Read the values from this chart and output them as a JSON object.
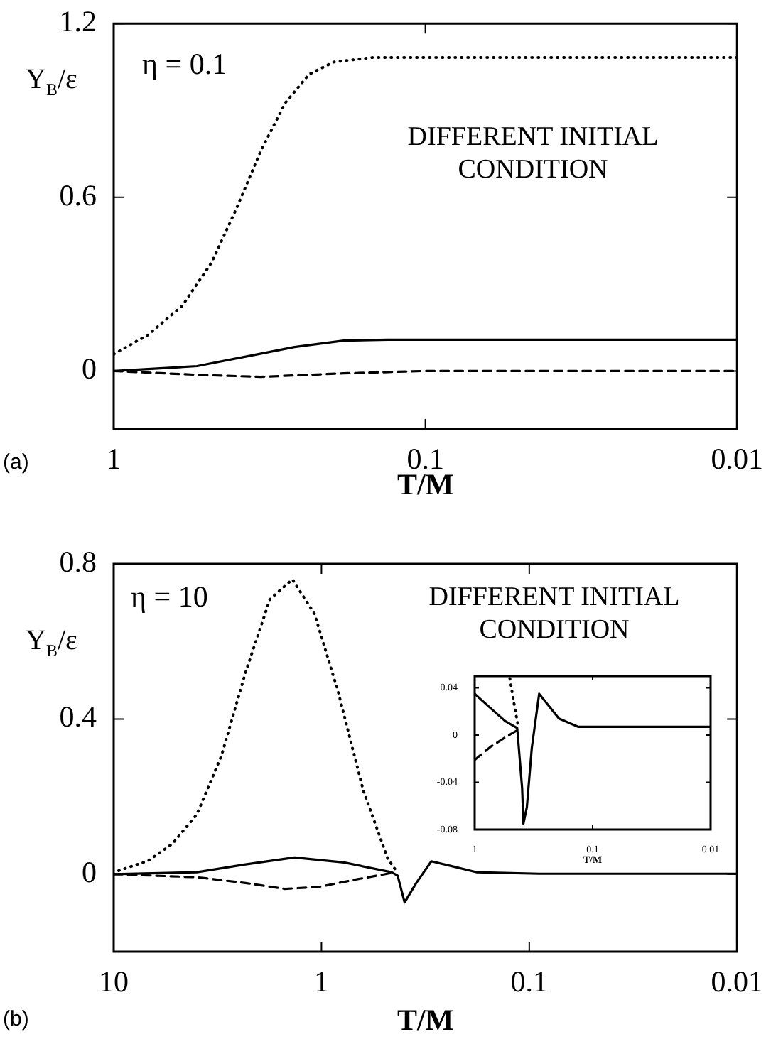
{
  "chart_data": [
    {
      "type": "line",
      "xlabel": "T/M",
      "ylabel": "Y$_{B}$/ε",
      "log": "x",
      "xlim": [
        1,
        0.01
      ],
      "xticks": [
        1,
        0.1,
        0.01
      ],
      "ylim": [
        -0.2,
        1.2
      ],
      "yticks": [
        0,
        0.6,
        1.2
      ],
      "legend": false,
      "annotations": [
        "(a)",
        "η = 0.1",
        "DIFFERENT INITIAL CONDITION"
      ],
      "series": [
        {
          "color": "#000000",
          "line_style": "solid",
          "x": [
            1,
            0.54,
            0.377,
            0.263,
            0.183,
            0.132,
            0.01
          ],
          "values": [
            0,
            0.017,
            0.05,
            0.083,
            0.105,
            0.108,
            0.108
          ]
        },
        {
          "color": "#000000",
          "line_style": "dashed",
          "x": [
            1,
            0.54,
            0.338,
            0.183,
            0.103,
            0.01
          ],
          "values": [
            0,
            -0.013,
            -0.02,
            -0.008,
            0,
            0
          ]
        },
        {
          "color": "#000000",
          "line_style": "dotted",
          "x": [
            1,
            0.776,
            0.603,
            0.485,
            0.405,
            0.338,
            0.282,
            0.236,
            0.197,
            0.147,
            0.01
          ],
          "values": [
            0.058,
            0.125,
            0.225,
            0.375,
            0.558,
            0.758,
            0.925,
            1.025,
            1.067,
            1.083,
            1.083
          ]
        }
      ]
    },
    {
      "type": "line",
      "xlabel": "T/M",
      "ylabel": "Y$_{B}$/ε",
      "log": "x",
      "xlim": [
        10,
        0.01
      ],
      "xticks": [
        10,
        1,
        0.1,
        0.01
      ],
      "ylim": [
        -0.2,
        0.8
      ],
      "yticks": [
        0,
        0.4,
        0.8
      ],
      "legend": false,
      "annotations": [
        "(b)",
        "η = 10",
        "DIFFERENT INITIAL CONDITION"
      ],
      "series": [
        {
          "color": "#000000",
          "line_style": "solid",
          "x": [
            10,
            3.98,
            2.32,
            1.35,
            0.78,
            0.46,
            0.43,
            0.398,
            0.35,
            0.296,
            0.238,
            0.18,
            0.09,
            0.01
          ],
          "values": [
            0,
            0.005,
            0.025,
            0.043,
            0.03,
            0.005,
            -0.004,
            -0.073,
            -0.023,
            0.033,
            0.021,
            0.005,
            0.001,
            0.001
          ]
        },
        {
          "color": "#000000",
          "line_style": "dashed",
          "x": [
            10,
            3.98,
            2.32,
            1.5,
            1.03,
            0.67,
            0.46
          ],
          "values": [
            0,
            -0.008,
            -0.023,
            -0.038,
            -0.033,
            -0.013,
            0.003
          ]
        },
        {
          "color": "#000000",
          "line_style": "dotted",
          "x": [
            9.47,
            6.84,
            5.22,
            3.98,
            3.03,
            2.32,
            1.77,
            1.38,
            1.08,
            0.83,
            0.63,
            0.48,
            0.43
          ],
          "values": [
            0.009,
            0.034,
            0.078,
            0.154,
            0.305,
            0.52,
            0.709,
            0.76,
            0.671,
            0.469,
            0.217,
            0.04,
            0.003
          ]
        }
      ]
    },
    {
      "type": "line",
      "xlabel": "T/M",
      "log": "x",
      "xlim": [
        1,
        0.01
      ],
      "xticks": [
        1,
        0.1,
        0.01
      ],
      "ylim": [
        -0.08,
        0.05
      ],
      "yticks": [
        -0.08,
        -0.04,
        0,
        0.04
      ],
      "legend": false,
      "series": [
        {
          "color": "#000000",
          "line_style": "solid",
          "x": [
            1,
            0.736,
            0.553,
            0.436,
            0.396,
            0.386,
            0.361,
            0.328,
            0.284,
            0.245,
            0.193,
            0.132,
            0.01
          ],
          "values": [
            0.035,
            0.023,
            0.012,
            0.006,
            -0.045,
            -0.075,
            -0.061,
            -0.011,
            0.035,
            0.027,
            0.014,
            0.007,
            0.007
          ]
        },
        {
          "color": "#000000",
          "line_style": "dashed",
          "x": [
            1,
            0.736,
            0.553,
            0.436
          ],
          "values": [
            -0.021,
            -0.01,
            -0.002,
            0.004
          ]
        },
        {
          "color": "#000000",
          "line_style": "dotted",
          "x": [
            0.503,
            0.457,
            0.424
          ],
          "values": [
            0.048,
            0.023,
            0.006
          ]
        }
      ]
    }
  ]
}
